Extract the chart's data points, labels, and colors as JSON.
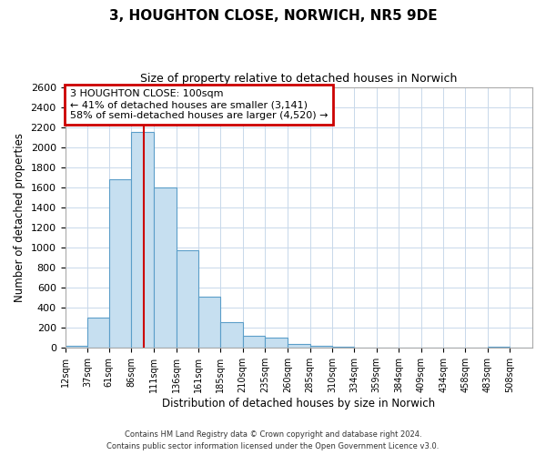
{
  "title": "3, HOUGHTON CLOSE, NORWICH, NR5 9DE",
  "subtitle": "Size of property relative to detached houses in Norwich",
  "xlabel": "Distribution of detached houses by size in Norwich",
  "ylabel": "Number of detached properties",
  "bar_labels": [
    "12sqm",
    "37sqm",
    "61sqm",
    "86sqm",
    "111sqm",
    "136sqm",
    "161sqm",
    "185sqm",
    "210sqm",
    "235sqm",
    "260sqm",
    "285sqm",
    "310sqm",
    "334sqm",
    "359sqm",
    "384sqm",
    "409sqm",
    "434sqm",
    "458sqm",
    "483sqm",
    "508sqm"
  ],
  "bar_values": [
    20,
    300,
    1680,
    2150,
    1600,
    970,
    510,
    255,
    125,
    100,
    35,
    18,
    10,
    5,
    5,
    3,
    2,
    1,
    1,
    15,
    1
  ],
  "bar_edges": [
    12,
    37,
    61,
    86,
    111,
    136,
    161,
    185,
    210,
    235,
    260,
    285,
    310,
    334,
    359,
    384,
    409,
    434,
    458,
    483,
    508
  ],
  "bar_color": "#c6dff0",
  "bar_edge_color": "#5b9ec9",
  "ylim": [
    0,
    2600
  ],
  "yticks": [
    0,
    200,
    400,
    600,
    800,
    1000,
    1200,
    1400,
    1600,
    1800,
    2000,
    2200,
    2400,
    2600
  ],
  "property_line_x": 100,
  "property_line_color": "#cc0000",
  "annotation_title": "3 HOUGHTON CLOSE: 100sqm",
  "annotation_line1": "← 41% of detached houses are smaller (3,141)",
  "annotation_line2": "58% of semi-detached houses are larger (4,520) →",
  "annotation_box_color": "#cc0000",
  "footer1": "Contains HM Land Registry data © Crown copyright and database right 2024.",
  "footer2": "Contains public sector information licensed under the Open Government Licence v3.0.",
  "bg_color": "#ffffff",
  "grid_color": "#c8d8ea"
}
